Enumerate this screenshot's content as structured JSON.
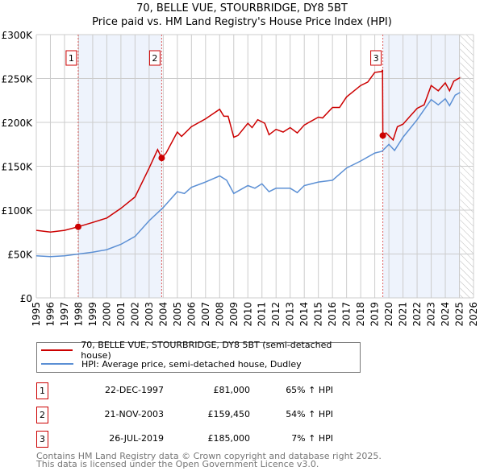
{
  "title_line1": "70, BELLE VUE, STOURBRIDGE, DY8 5BT",
  "title_line2": "Price paid vs. HM Land Registry's House Price Index (HPI)",
  "chart_data": {
    "type": "line",
    "ylim": [
      0,
      300000
    ],
    "xlim": [
      1995,
      2026
    ],
    "y_ticks": [
      0,
      50000,
      100000,
      150000,
      200000,
      250000,
      300000
    ],
    "y_tick_labels": [
      "£0",
      "£50K",
      "£100K",
      "£150K",
      "£200K",
      "£250K",
      "£300K"
    ],
    "x_ticks": [
      1995,
      1996,
      1997,
      1998,
      1999,
      2000,
      2001,
      2002,
      2003,
      2004,
      2005,
      2006,
      2007,
      2008,
      2009,
      2010,
      2011,
      2012,
      2013,
      2014,
      2015,
      2016,
      2017,
      2018,
      2019,
      2020,
      2021,
      2022,
      2023,
      2024,
      2025,
      2026
    ],
    "x_tick_labels": [
      "1995",
      "1996",
      "1997",
      "1998",
      "1999",
      "2000",
      "2001",
      "2002",
      "2003",
      "2004",
      "2005",
      "2006",
      "2007",
      "2008",
      "2009",
      "2010",
      "2011",
      "2012",
      "2013",
      "2014",
      "2015",
      "2016",
      "2017",
      "2018",
      "2019",
      "2020",
      "2021",
      "2022",
      "2023",
      "2024",
      "2025",
      "2026"
    ],
    "grid": true,
    "shaded_periods": [
      [
        1997.97,
        2003.89
      ],
      [
        2019.57,
        2025.05
      ]
    ],
    "forecast_hatch_from": 2025.05,
    "series": [
      {
        "name": "70, BELLE VUE, STOURBRIDGE, DY8 5BT (semi-detached house)",
        "color": "#cc0000",
        "x": [
          1995,
          1996,
          1997,
          1997.97,
          1999,
          2000,
          2001,
          2002,
          2003,
          2003.6,
          2003.89,
          2004.2,
          2005,
          2005.3,
          2006,
          2007,
          2008,
          2008.3,
          2008.6,
          2009,
          2009.3,
          2010,
          2010.3,
          2010.7,
          2011.2,
          2011.5,
          2012,
          2012.5,
          2013,
          2013.5,
          2014,
          2015,
          2015.3,
          2016,
          2016.5,
          2017,
          2018,
          2018.5,
          2019,
          2019.5,
          2019.55,
          2019.57,
          2019.8,
          2020.3,
          2020.6,
          2021,
          2022,
          2022.5,
          2023,
          2023.5,
          2024,
          2024.3,
          2024.6,
          2025.05
        ],
        "y": [
          77000,
          75000,
          77000,
          81000,
          86000,
          91000,
          102000,
          115000,
          148000,
          169000,
          159450,
          165000,
          189000,
          184000,
          195000,
          204000,
          215000,
          207000,
          207000,
          183000,
          185000,
          199000,
          194000,
          203000,
          199000,
          186000,
          192000,
          189000,
          194000,
          188000,
          197000,
          206000,
          205000,
          217000,
          217000,
          229000,
          242000,
          246000,
          257000,
          258000,
          260000,
          185000,
          188000,
          180000,
          195000,
          198000,
          216000,
          220000,
          242000,
          236000,
          245000,
          236000,
          247000,
          251000
        ]
      },
      {
        "name": "HPI: Average price, semi-detached house, Dudley",
        "color": "#5b8fd4",
        "x": [
          1995,
          1996,
          1997,
          1998,
          1999,
          2000,
          2001,
          2002,
          2003,
          2004,
          2005,
          2005.5,
          2006,
          2007,
          2008,
          2008.5,
          2009,
          2010,
          2010.5,
          2011,
          2011.5,
          2012,
          2013,
          2013.5,
          2014,
          2015,
          2016,
          2016.5,
          2017,
          2018,
          2019,
          2019.5,
          2020,
          2020.4,
          2021,
          2022,
          2023,
          2023.5,
          2024,
          2024.3,
          2024.7,
          2025.05
        ],
        "y": [
          48000,
          47000,
          48000,
          50000,
          52000,
          55000,
          61000,
          70000,
          88000,
          103000,
          121000,
          119000,
          126000,
          132000,
          139000,
          134000,
          119000,
          128000,
          125000,
          130000,
          121000,
          125000,
          125000,
          120000,
          128000,
          132000,
          134000,
          141000,
          148000,
          156000,
          165000,
          167000,
          175000,
          168000,
          183000,
          203000,
          226000,
          220000,
          227000,
          219000,
          231000,
          234000
        ]
      }
    ],
    "sales": [
      {
        "label": "1",
        "x": 1997.97,
        "y": 81000
      },
      {
        "label": "2",
        "x": 2003.89,
        "y": 159450
      },
      {
        "label": "3",
        "x": 2019.57,
        "y": 185000
      }
    ]
  },
  "legend": {
    "property": "70, BELLE VUE, STOURBRIDGE, DY8 5BT (semi-detached house)",
    "hpi": "HPI: Average price, semi-detached house, Dudley"
  },
  "transactions": [
    {
      "num": "1",
      "date": "22-DEC-1997",
      "price": "£81,000",
      "hpi": "65% ↑ HPI"
    },
    {
      "num": "2",
      "date": "21-NOV-2003",
      "price": "£159,450",
      "hpi": "54% ↑ HPI"
    },
    {
      "num": "3",
      "date": "26-JUL-2019",
      "price": "£185,000",
      "hpi": "7% ↑ HPI"
    }
  ],
  "footer": {
    "line1": "Contains HM Land Registry data © Crown copyright and database right 2025.",
    "line2": "This data is licensed under the Open Government Licence v3.0."
  }
}
